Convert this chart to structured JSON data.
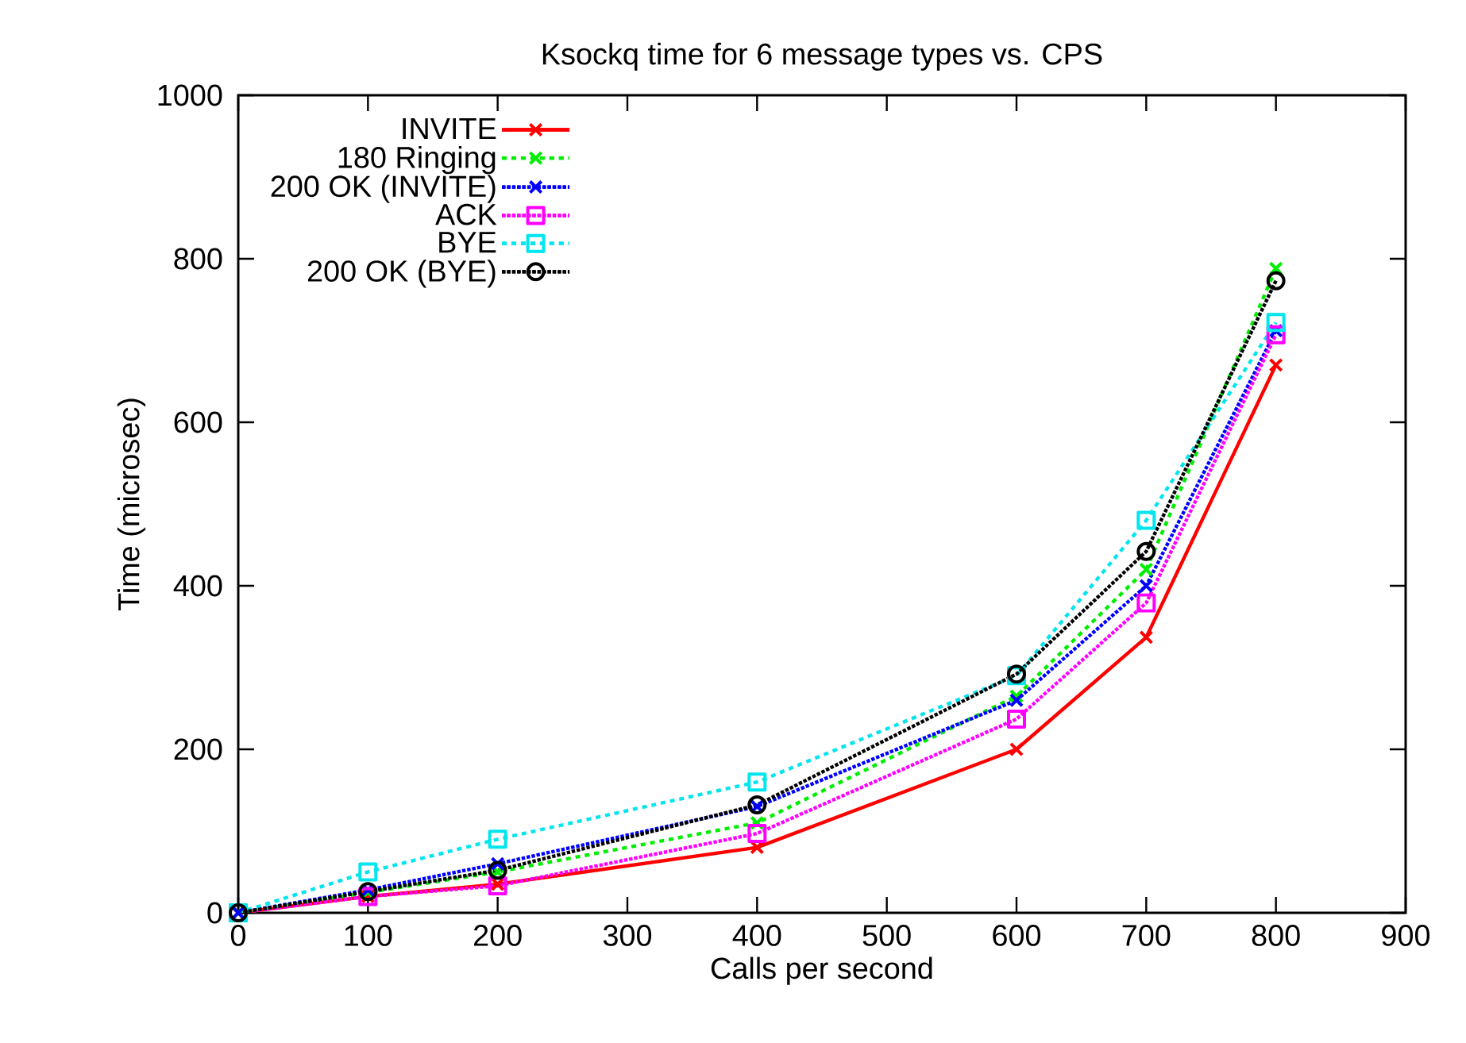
{
  "chart_data": {
    "type": "line",
    "title": "Ksockq time for 6 message types vs. CPS",
    "xlabel": "Calls per second",
    "ylabel": "Time (microsec)",
    "x": [
      0,
      100,
      200,
      400,
      600,
      700,
      800
    ],
    "xlim": [
      0,
      900
    ],
    "xticks": [
      0,
      100,
      200,
      300,
      400,
      500,
      600,
      700,
      800,
      900
    ],
    "ylim": [
      0,
      1000
    ],
    "yticks": [
      0,
      200,
      400,
      600,
      800,
      1000
    ],
    "grid": false,
    "legend": "top left",
    "series": [
      {
        "name": "INVITE",
        "color": "#ff0000",
        "marker": "cross",
        "line_style": "solid",
        "values": [
          0,
          20,
          35,
          80,
          200,
          337,
          670
        ]
      },
      {
        "name": "180 Ringing",
        "color": "#00ee00",
        "marker": "cross",
        "line_style": "dashed",
        "values": [
          0,
          25,
          50,
          110,
          265,
          420,
          788
        ]
      },
      {
        "name": "200 OK (INVITE)",
        "color": "#0000ff",
        "marker": "cross",
        "line_style": "dotted",
        "values": [
          0,
          28,
          60,
          130,
          260,
          400,
          712
        ]
      },
      {
        "name": "ACK",
        "color": "#ff00ff",
        "marker": "square",
        "line_style": "dotted",
        "values": [
          0,
          20,
          33,
          97,
          237,
          379,
          707
        ]
      },
      {
        "name": "BYE",
        "color": "#00e5ee",
        "marker": "square",
        "line_style": "dashed",
        "values": [
          0,
          50,
          90,
          160,
          290,
          480,
          722
        ]
      },
      {
        "name": "200 OK (BYE)",
        "color": "#000000",
        "marker": "circle",
        "line_style": "dotted",
        "values": [
          0,
          26,
          52,
          132,
          292,
          442,
          773
        ]
      }
    ]
  }
}
